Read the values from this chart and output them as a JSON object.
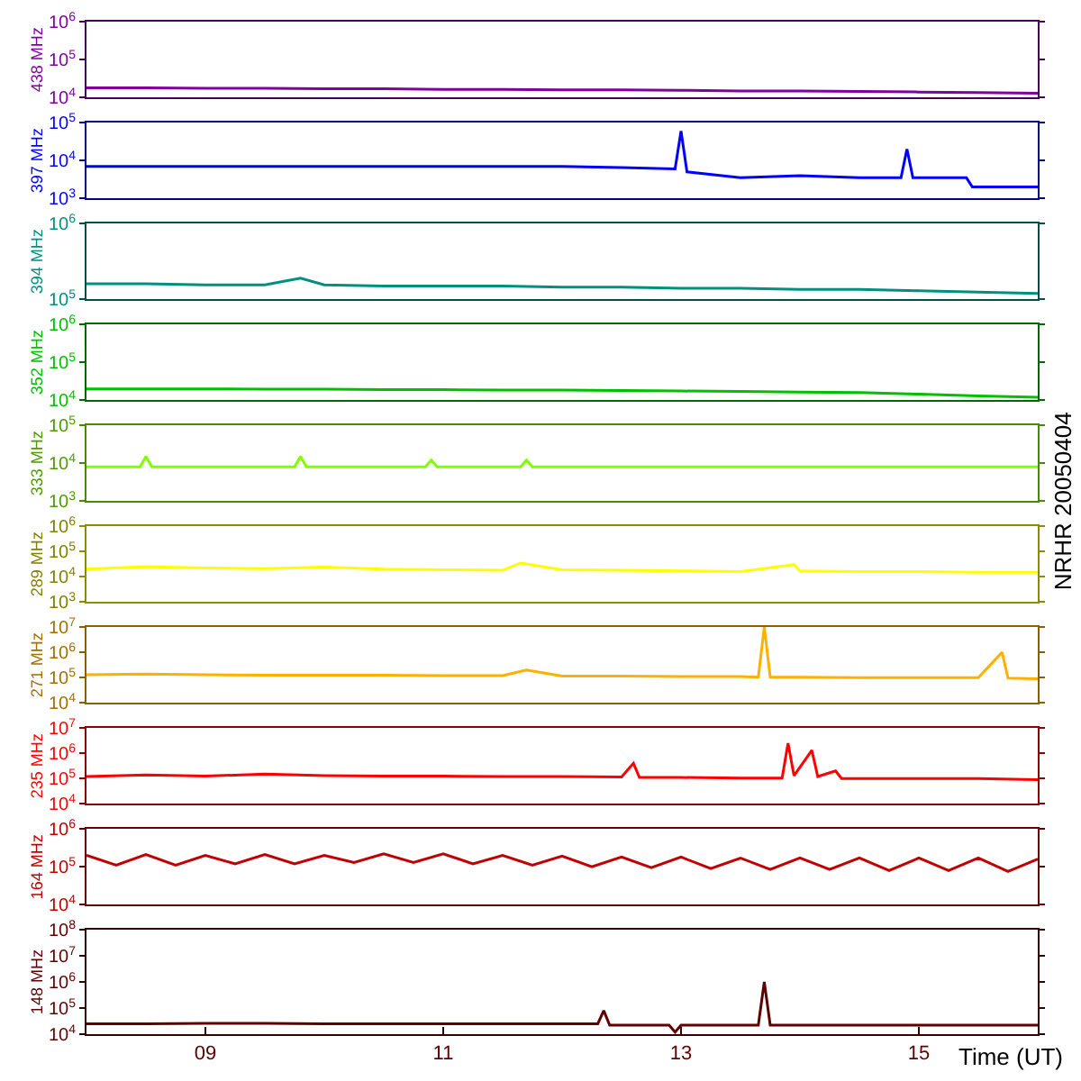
{
  "chart_data": [
    {
      "type": "line",
      "ylabel": "438 MHz",
      "log": "y",
      "ylim": [
        10000,
        1000000
      ],
      "yticks": [
        {
          "value": 10000,
          "label": "10$^{4}$"
        },
        {
          "value": 100000,
          "label": "10$^{5}$"
        },
        {
          "value": 1000000,
          "label": "10$^{6}$"
        }
      ],
      "xlim": [
        8,
        16
      ],
      "tick_labels": "y",
      "marker": "none",
      "series": [
        {
          "color": "#8000a0",
          "x": [
            8,
            8.5,
            9,
            9.5,
            10,
            10.5,
            11,
            11.5,
            12,
            12.5,
            13,
            13.5,
            14,
            14.5,
            15,
            15.5,
            16
          ],
          "values": [
            18000,
            18000,
            17500,
            17500,
            17000,
            17000,
            16500,
            16500,
            16000,
            16000,
            15500,
            15000,
            15000,
            14500,
            14000,
            13500,
            13000
          ]
        }
      ]
    },
    {
      "type": "line",
      "ylabel": "397 MHz",
      "log": "y",
      "ylim": [
        1000,
        100000
      ],
      "yticks": [
        {
          "value": 1000,
          "label": "10$^{3}$"
        },
        {
          "value": 10000,
          "label": "10$^{4}$"
        },
        {
          "value": 100000,
          "label": "10$^{5}$"
        }
      ],
      "xlim": [
        8,
        16
      ],
      "tick_labels": "y",
      "marker": "none",
      "series": [
        {
          "color": "#0000ff",
          "x": [
            8,
            8.5,
            9,
            9.5,
            10,
            10.5,
            11,
            11.5,
            12,
            12.5,
            12.95,
            13.0,
            13.05,
            13.5,
            14,
            14.5,
            14.85,
            14.9,
            14.95,
            15.3,
            15.4,
            15.45,
            16
          ],
          "values": [
            7000,
            7000,
            7000,
            7000,
            7000,
            7000,
            7000,
            7000,
            7000,
            6500,
            6000,
            60000,
            5000,
            3500,
            4000,
            3500,
            3500,
            20000,
            3500,
            3500,
            3500,
            2000,
            2000
          ]
        }
      ]
    },
    {
      "type": "line",
      "ylabel": "394 MHz",
      "log": "y",
      "ylim": [
        100000,
        1000000
      ],
      "yticks": [
        {
          "value": 100000,
          "label": "10$^{5}$"
        },
        {
          "value": 1000000,
          "label": "10$^{6}$"
        }
      ],
      "xlim": [
        8,
        16
      ],
      "tick_labels": "y",
      "marker": "none",
      "series": [
        {
          "color": "#009080",
          "x": [
            8,
            8.5,
            9,
            9.5,
            9.8,
            10,
            10.5,
            11,
            11.5,
            12,
            12.5,
            13,
            13.5,
            14,
            14.5,
            15,
            15.5,
            16
          ],
          "values": [
            160000,
            160000,
            155000,
            155000,
            190000,
            155000,
            150000,
            150000,
            150000,
            145000,
            145000,
            140000,
            140000,
            135000,
            135000,
            130000,
            125000,
            120000
          ]
        }
      ]
    },
    {
      "type": "line",
      "ylabel": "352 MHz",
      "log": "y",
      "ylim": [
        10000,
        1000000
      ],
      "yticks": [
        {
          "value": 10000,
          "label": "10$^{4}$"
        },
        {
          "value": 100000,
          "label": "10$^{5}$"
        },
        {
          "value": 1000000,
          "label": "10$^{6}$"
        }
      ],
      "xlim": [
        8,
        16
      ],
      "tick_labels": "y",
      "marker": "none",
      "series": [
        {
          "color": "#00c000",
          "x": [
            8,
            8.5,
            9,
            9.5,
            10,
            10.5,
            11,
            11.5,
            12,
            12.5,
            13,
            13.5,
            14,
            14.5,
            15,
            15.5,
            16
          ],
          "values": [
            20000,
            20000,
            20000,
            19500,
            19500,
            19000,
            19000,
            18500,
            18500,
            18000,
            17500,
            17000,
            16500,
            16000,
            14500,
            13000,
            12000
          ]
        }
      ]
    },
    {
      "type": "line",
      "ylabel": "333 MHz",
      "log": "y",
      "ylim": [
        1000,
        100000
      ],
      "yticks": [
        {
          "value": 1000,
          "label": "10$^{3}$"
        },
        {
          "value": 10000,
          "label": "10$^{4}$"
        },
        {
          "value": 100000,
          "label": "10$^{5}$"
        }
      ],
      "xlim": [
        8,
        16
      ],
      "tick_labels": "y",
      "marker": "none",
      "annotations": [
        "NRHR 20050404"
      ],
      "series": [
        {
          "color": "#80ff00",
          "x": [
            8,
            8.45,
            8.5,
            8.55,
            9.75,
            9.8,
            9.85,
            10.85,
            10.9,
            10.95,
            11.65,
            11.7,
            11.75,
            16
          ],
          "values": [
            8000,
            8000,
            15000,
            8000,
            8000,
            15000,
            8000,
            8000,
            12000,
            8000,
            8000,
            12000,
            8000,
            8000
          ]
        }
      ]
    },
    {
      "type": "line",
      "ylabel": "289 MHz",
      "log": "y",
      "ylim": [
        1000,
        1000000
      ],
      "yticks": [
        {
          "value": 1000,
          "label": "10$^{3}$"
        },
        {
          "value": 10000,
          "label": "10$^{4}$"
        },
        {
          "value": 100000,
          "label": "10$^{5}$"
        },
        {
          "value": 1000000,
          "label": "10$^{6}$"
        }
      ],
      "xlim": [
        8,
        16
      ],
      "tick_labels": "y",
      "marker": "none",
      "series": [
        {
          "color": "#ffff00",
          "x": [
            8,
            8.5,
            9,
            9.5,
            10,
            10.5,
            11,
            11.5,
            11.65,
            12,
            12.5,
            13,
            13.5,
            13.95,
            14,
            14.5,
            15,
            15.5,
            16
          ],
          "values": [
            20000,
            25000,
            22000,
            21000,
            24000,
            20000,
            19000,
            18000,
            35000,
            19000,
            18000,
            17000,
            16000,
            30000,
            17000,
            16000,
            16000,
            15000,
            15000
          ]
        }
      ]
    },
    {
      "type": "line",
      "ylabel": "271 MHz",
      "log": "y",
      "ylim": [
        10000,
        10000000
      ],
      "yticks": [
        {
          "value": 10000,
          "label": "10$^{4}$"
        },
        {
          "value": 100000,
          "label": "10$^{5}$"
        },
        {
          "value": 1000000,
          "label": "10$^{6}$"
        },
        {
          "value": 10000000,
          "label": "10$^{7}$"
        }
      ],
      "xlim": [
        8,
        16
      ],
      "tick_labels": "y",
      "marker": "none",
      "series": [
        {
          "color": "#ffb000",
          "x": [
            8,
            8.5,
            9,
            9.5,
            10,
            10.5,
            11,
            11.5,
            11.7,
            12,
            12.5,
            13,
            13.5,
            13.65,
            13.7,
            13.75,
            14,
            14.5,
            15,
            15.5,
            15.7,
            15.75,
            16
          ],
          "values": [
            130000,
            140000,
            130000,
            125000,
            125000,
            125000,
            120000,
            120000,
            200000,
            115000,
            115000,
            110000,
            110000,
            105000,
            10000000,
            105000,
            105000,
            100000,
            100000,
            100000,
            1000000,
            95000,
            90000
          ]
        }
      ]
    },
    {
      "type": "line",
      "ylabel": "235 MHz",
      "log": "y",
      "ylim": [
        10000,
        10000000
      ],
      "yticks": [
        {
          "value": 10000,
          "label": "10$^{4}$"
        },
        {
          "value": 100000,
          "label": "10$^{5}$"
        },
        {
          "value": 1000000,
          "label": "10$^{6}$"
        },
        {
          "value": 10000000,
          "label": "10$^{7}$"
        }
      ],
      "xlim": [
        8,
        16
      ],
      "tick_labels": "y",
      "marker": "none",
      "series": [
        {
          "color": "#ff0000",
          "x": [
            8,
            8.5,
            9,
            9.5,
            10,
            10.5,
            11,
            11.5,
            12,
            12.5,
            12.6,
            12.65,
            13,
            13.5,
            13.85,
            13.9,
            13.95,
            14.1,
            14.15,
            14.3,
            14.35,
            14.5,
            15,
            15.5,
            16
          ],
          "values": [
            120000,
            140000,
            125000,
            150000,
            130000,
            125000,
            125000,
            120000,
            120000,
            115000,
            400000,
            110000,
            110000,
            105000,
            105000,
            2500000,
            130000,
            1300000,
            120000,
            200000,
            100000,
            100000,
            100000,
            100000,
            90000
          ]
        }
      ]
    },
    {
      "type": "line",
      "ylabel": "164 MHz",
      "log": "y",
      "ylim": [
        10000,
        1000000
      ],
      "yticks": [
        {
          "value": 10000,
          "label": "10$^{4}$"
        },
        {
          "value": 100000,
          "label": "10$^{5}$"
        },
        {
          "value": 1000000,
          "label": "10$^{6}$"
        }
      ],
      "xlim": [
        8,
        16
      ],
      "tick_labels": "y",
      "marker": "none",
      "series": [
        {
          "color": "#c00000",
          "x": [
            8,
            8.25,
            8.5,
            8.75,
            9,
            9.25,
            9.5,
            9.75,
            10,
            10.25,
            10.5,
            10.75,
            11,
            11.25,
            11.5,
            11.75,
            12,
            12.25,
            12.5,
            12.75,
            13,
            13.25,
            13.5,
            13.75,
            14,
            14.25,
            14.5,
            14.75,
            15,
            15.25,
            15.5,
            15.75,
            16
          ],
          "values": [
            200000,
            110000,
            210000,
            110000,
            200000,
            120000,
            210000,
            120000,
            200000,
            130000,
            220000,
            130000,
            220000,
            120000,
            200000,
            110000,
            190000,
            100000,
            180000,
            95000,
            180000,
            90000,
            170000,
            85000,
            170000,
            85000,
            170000,
            80000,
            170000,
            80000,
            170000,
            75000,
            160000
          ]
        }
      ]
    },
    {
      "type": "line",
      "ylabel": "148 MHz",
      "xlabel": "Time (UT)",
      "log": "y",
      "ylim": [
        10000,
        100000000
      ],
      "yticks": [
        {
          "value": 10000,
          "label": "10$^{4}$"
        },
        {
          "value": 100000,
          "label": "10$^{5}$"
        },
        {
          "value": 1000000,
          "label": "10$^{6}$"
        },
        {
          "value": 10000000,
          "label": "10$^{7}$"
        },
        {
          "value": 100000000,
          "label": "10$^{8}$"
        }
      ],
      "xlim": [
        8,
        16
      ],
      "xticks": [
        {
          "value": 9,
          "label": "09"
        },
        {
          "value": 11,
          "label": "11"
        },
        {
          "value": 13,
          "label": "13"
        },
        {
          "value": 15,
          "label": "15"
        }
      ],
      "marker": "none",
      "series": [
        {
          "color": "#600000",
          "x": [
            8,
            8.5,
            9,
            9.5,
            10,
            10.5,
            11,
            11.5,
            12,
            12.3,
            12.35,
            12.4,
            12.9,
            12.95,
            13.0,
            13.5,
            13.65,
            13.7,
            13.75,
            14,
            14.5,
            15,
            15.5,
            16
          ],
          "values": [
            25000,
            25000,
            26000,
            26000,
            25000,
            25000,
            25000,
            25000,
            25000,
            25000,
            80000,
            22000,
            22000,
            12000,
            22000,
            22000,
            22000,
            1000000,
            22000,
            22000,
            22000,
            22000,
            22000,
            22000
          ]
        }
      ]
    }
  ]
}
